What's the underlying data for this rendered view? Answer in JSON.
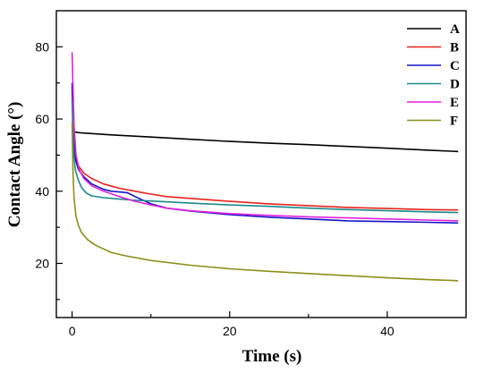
{
  "chart_data": {
    "type": "line",
    "title": "",
    "xlabel": "Time (s)",
    "ylabel": "Contact Angle (°)",
    "xlim": [
      -2,
      50
    ],
    "ylim": [
      5,
      90
    ],
    "x_ticks": [
      0,
      20,
      40
    ],
    "y_ticks": [
      20,
      40,
      60,
      80
    ],
    "grid": false,
    "legend_position": "top-right",
    "series": [
      {
        "name": "A",
        "color": "#000000",
        "x": [
          0,
          0.3,
          1,
          5,
          10,
          15,
          20,
          25,
          30,
          35,
          40,
          45,
          49
        ],
        "y": [
          56.5,
          56.4,
          56.2,
          55.6,
          55.0,
          54.4,
          53.8,
          53.3,
          52.9,
          52.4,
          51.9,
          51.4,
          51.0
        ]
      },
      {
        "name": "B",
        "color": "#e8241c",
        "x": [
          0,
          0.15,
          0.4,
          0.8,
          1.5,
          2.5,
          4,
          6,
          8,
          10,
          12,
          15,
          20,
          25,
          30,
          35,
          40,
          45,
          49
        ],
        "y": [
          69,
          57,
          50,
          47,
          45,
          43.5,
          42,
          40.8,
          40,
          39.2,
          38.5,
          38,
          37.2,
          36.5,
          36,
          35.5,
          35.2,
          34.9,
          34.8
        ]
      },
      {
        "name": "C",
        "color": "#1515c8",
        "x": [
          0,
          0.15,
          0.4,
          0.8,
          1.5,
          2.5,
          4,
          5,
          6,
          7,
          8,
          10,
          12,
          15,
          20,
          25,
          30,
          35,
          40,
          45,
          49
        ],
        "y": [
          70,
          56,
          49,
          46,
          44,
          42,
          40.5,
          40,
          39.8,
          39.6,
          38.5,
          36.5,
          35.3,
          34.5,
          33.5,
          32.8,
          32.3,
          31.8,
          31.6,
          31.4,
          31.2
        ]
      },
      {
        "name": "D",
        "color": "#1a8a8a",
        "x": [
          0,
          0.15,
          0.4,
          0.8,
          1.2,
          1.8,
          2.5,
          4,
          6,
          8,
          10,
          15,
          20,
          25,
          30,
          35,
          40,
          45,
          49
        ],
        "y": [
          65,
          52,
          46,
          43,
          41,
          39.5,
          38.7,
          38.2,
          37.8,
          37.5,
          37.3,
          36.7,
          36.2,
          35.8,
          35.3,
          34.9,
          34.6,
          34.3,
          34.1
        ]
      },
      {
        "name": "E",
        "color": "#e020e0",
        "x": [
          0,
          0.1,
          0.25,
          0.5,
          0.9,
          1.5,
          2.5,
          4,
          6,
          8,
          10,
          12,
          15,
          20,
          25,
          30,
          35,
          40,
          45,
          49
        ],
        "y": [
          78.5,
          70,
          58,
          50,
          46,
          43.5,
          41.5,
          40,
          38.5,
          37.2,
          36.2,
          35.3,
          34.6,
          33.8,
          33.3,
          32.9,
          32.6,
          32.3,
          32.0,
          31.8
        ]
      },
      {
        "name": "F",
        "color": "#8e8e1a",
        "x": [
          0,
          0.1,
          0.25,
          0.5,
          0.8,
          1.2,
          2,
          3,
          5,
          7,
          10,
          15,
          20,
          25,
          30,
          35,
          40,
          45,
          49
        ],
        "y": [
          59,
          46,
          38,
          33,
          30.5,
          28.5,
          26.5,
          25,
          23,
          22,
          20.8,
          19.5,
          18.5,
          17.8,
          17.2,
          16.6,
          16.0,
          15.5,
          15.2
        ]
      }
    ]
  }
}
